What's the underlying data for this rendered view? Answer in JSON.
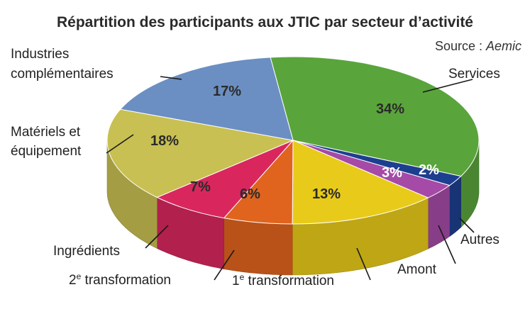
{
  "header": {
    "title": "Répartition des participants aux JTIC par secteur d’activité",
    "source_prefix": "Source : ",
    "source_name": "Aemic"
  },
  "chart_data": {
    "type": "pie",
    "title": "Répartition des participants aux JTIC par secteur d’activité",
    "slices": [
      {
        "name": "Services",
        "value": 34,
        "label": "34%",
        "color": "#5aa43c"
      },
      {
        "name": "Autres",
        "value": 2,
        "label": "2%",
        "color": "#1d3f8f"
      },
      {
        "name": "Amont",
        "value": 3,
        "label": "3%",
        "color": "#a54aa6"
      },
      {
        "name": "1e transformation",
        "value": 13,
        "label": "13%",
        "color": "#e8cb1a"
      },
      {
        "name": "2e transformation",
        "value": 6,
        "label": "6%",
        "color": "#e0641e"
      },
      {
        "name": "Ingrédients",
        "value": 7,
        "label": "7%",
        "color": "#d9275e"
      },
      {
        "name": "Matériels et équipement",
        "value": 18,
        "label": "18%",
        "color": "#c8c052"
      },
      {
        "name": "Industries complémentaires",
        "value": 17,
        "label": "17%",
        "color": "#6b8fc2"
      }
    ],
    "category_labels": {
      "services": "Services",
      "autres": "Autres",
      "amont": "Amont",
      "transfo1_main": "1",
      "transfo1_sup": "e",
      "transfo1_rest": " transformation",
      "transfo2_main": "2",
      "transfo2_sup": "e",
      "transfo2_rest": " transformation",
      "ingredients": "Ingrédients",
      "materiels_line1": "Matériels et",
      "materiels_line2": "équipement",
      "industries_line1": "Industries",
      "industries_line2": "complémentaires"
    }
  }
}
